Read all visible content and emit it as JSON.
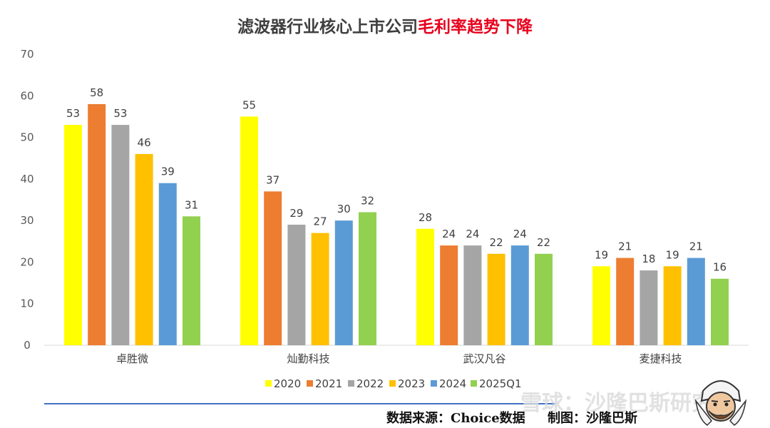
{
  "title": {
    "main": "滤波器行业核心上市公司",
    "highlight": "毛利率趋势下降",
    "highlight_color": "#e8001c"
  },
  "chart_data": {
    "type": "bar",
    "categories": [
      "卓胜微",
      "灿勤科技",
      "武汉凡谷",
      "麦捷科技"
    ],
    "series": [
      {
        "name": "2020",
        "color": "#ffff00",
        "values": [
          53,
          55,
          28,
          19
        ]
      },
      {
        "name": "2021",
        "color": "#ed7d31",
        "values": [
          58,
          37,
          24,
          21
        ]
      },
      {
        "name": "2022",
        "color": "#a5a5a5",
        "values": [
          53,
          29,
          24,
          18
        ]
      },
      {
        "name": "2023",
        "color": "#ffc000",
        "values": [
          46,
          27,
          22,
          19
        ]
      },
      {
        "name": "2024",
        "color": "#5b9bd5",
        "values": [
          39,
          30,
          24,
          21
        ]
      },
      {
        "name": "2025Q1",
        "color": "#92d050",
        "values": [
          31,
          32,
          22,
          16
        ]
      }
    ],
    "ylim": [
      0,
      70
    ],
    "yticks": [
      0,
      10,
      20,
      30,
      40,
      50,
      60,
      70
    ],
    "grid": false,
    "legend": "bottom",
    "data_labels": true
  },
  "footer": {
    "source": "数据来源：Choice数据     制图：沙隆巴斯",
    "watermark": "雪球：沙隆巴斯研究",
    "line_color": "#4472c4"
  },
  "icons": [
    "mascot-icon"
  ]
}
